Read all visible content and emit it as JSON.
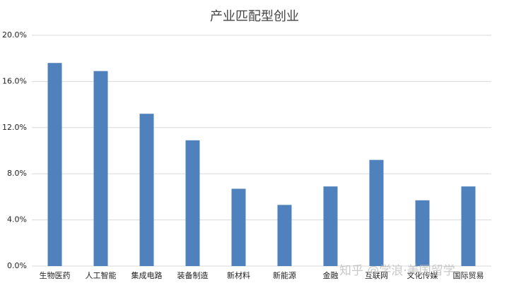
{
  "chart_data": {
    "type": "bar",
    "title": "产业匹配型创业",
    "categories": [
      "生物医药",
      "人工智能",
      "集成电路",
      "装备制造",
      "新材料",
      "新能源",
      "金融",
      "互联网",
      "文化传媒",
      "国际贸易"
    ],
    "values": [
      17.6,
      16.9,
      13.2,
      10.9,
      6.7,
      5.3,
      6.9,
      9.2,
      5.7,
      6.9
    ],
    "color": "#4f81bd",
    "ylim": [
      0,
      20
    ],
    "yticks": [
      {
        "value": 0,
        "label": "0.0%"
      },
      {
        "value": 4,
        "label": "4.0%"
      },
      {
        "value": 8,
        "label": "8.0%"
      },
      {
        "value": 12,
        "label": "12.0%"
      },
      {
        "value": 16,
        "label": "16.0%"
      },
      {
        "value": 20,
        "label": "20.0%"
      }
    ],
    "grid": true,
    "watermark": "知乎 @学浪·美国留学"
  }
}
